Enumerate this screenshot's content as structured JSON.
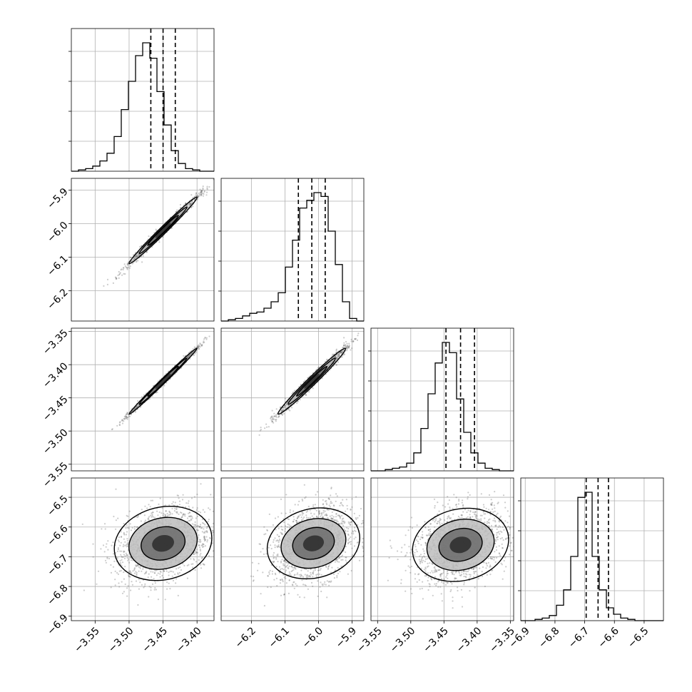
{
  "chart_data": {
    "type": "corner",
    "title": "",
    "grid": true,
    "parameters": [
      {
        "index": 0,
        "xlabel": "",
        "range": [
          -3.585,
          -3.375
        ],
        "ticks": [
          -3.55,
          -3.5,
          -3.45,
          -3.4
        ],
        "tick_labels": [
          "−3.55",
          "−3.50",
          "−3.45",
          "−3.40"
        ],
        "quantiles": [
          -3.468,
          -3.45,
          -3.432
        ],
        "hist": [
          0,
          0.01,
          0.02,
          0.04,
          0.08,
          0.14,
          0.27,
          0.48,
          0.7,
          0.9,
          1.0,
          0.88,
          0.62,
          0.36,
          0.16,
          0.06,
          0.02,
          0.01,
          0,
          0
        ]
      },
      {
        "index": 1,
        "xlabel": "",
        "range": [
          -6.29,
          -5.865
        ],
        "ticks": [
          -6.2,
          -6.1,
          -6.0,
          -5.9
        ],
        "tick_labels": [
          "−6.2",
          "−6.1",
          "−6.0",
          "−5.9"
        ],
        "quantiles": [
          -6.06,
          -6.02,
          -5.98
        ],
        "hist": [
          0,
          0.01,
          0.02,
          0.04,
          0.06,
          0.07,
          0.1,
          0.15,
          0.22,
          0.42,
          0.63,
          0.88,
          0.94,
          1.0,
          0.97,
          0.7,
          0.44,
          0.15,
          0.02,
          0
        ]
      },
      {
        "index": 2,
        "xlabel": "",
        "range": [
          -3.56,
          -3.345
        ],
        "ticks": [
          -3.55,
          -3.5,
          -3.45,
          -3.4,
          -3.35
        ],
        "tick_labels": [
          "−3.55",
          "−3.50",
          "−3.45",
          "−3.40",
          "−3.35"
        ],
        "quantiles": [
          -3.447,
          -3.425,
          -3.404
        ],
        "hist": [
          0,
          0,
          0.01,
          0.02,
          0.03,
          0.06,
          0.14,
          0.33,
          0.6,
          0.84,
          1.0,
          0.92,
          0.56,
          0.3,
          0.14,
          0.06,
          0.02,
          0.01,
          0,
          0
        ]
      },
      {
        "index": 3,
        "xlabel": "",
        "range": [
          -6.915,
          -6.435
        ],
        "ticks": [
          -6.9,
          -6.8,
          -6.7,
          -6.6,
          -6.5
        ],
        "tick_labels": [
          "−6.9",
          "−6.8",
          "−6.7",
          "−6.6",
          "−6.5"
        ],
        "quantiles": [
          -6.695,
          -6.655,
          -6.62
        ],
        "hist": [
          0,
          0,
          0.01,
          0.02,
          0.04,
          0.12,
          0.24,
          0.5,
          0.96,
          1.0,
          0.5,
          0.24,
          0.1,
          0.05,
          0.02,
          0.01,
          0,
          0,
          0,
          0
        ]
      }
    ],
    "panels": [
      {
        "row": 1,
        "col": 0,
        "center": [
          -3.45,
          -6.02
        ],
        "sd": [
          0.025,
          0.05
        ],
        "corr": 0.99
      },
      {
        "row": 2,
        "col": 0,
        "center": [
          -3.45,
          -3.425
        ],
        "sd": [
          0.025,
          0.025
        ],
        "corr": 0.995
      },
      {
        "row": 2,
        "col": 1,
        "center": [
          -6.02,
          -3.425
        ],
        "sd": [
          0.05,
          0.025
        ],
        "corr": 0.985
      },
      {
        "row": 3,
        "col": 0,
        "center": [
          -3.45,
          -6.655
        ],
        "sd": [
          0.035,
          0.065
        ],
        "corr": 0.3
      },
      {
        "row": 3,
        "col": 1,
        "center": [
          -6.015,
          -6.655
        ],
        "sd": [
          0.065,
          0.065
        ],
        "corr": 0.3
      },
      {
        "row": 3,
        "col": 2,
        "center": [
          -3.425,
          -6.66
        ],
        "sd": [
          0.035,
          0.065
        ],
        "corr": 0.3
      }
    ],
    "colors": {
      "line": "#000000",
      "points": "#6e6e6e",
      "grid": "#b0b0b0"
    }
  }
}
